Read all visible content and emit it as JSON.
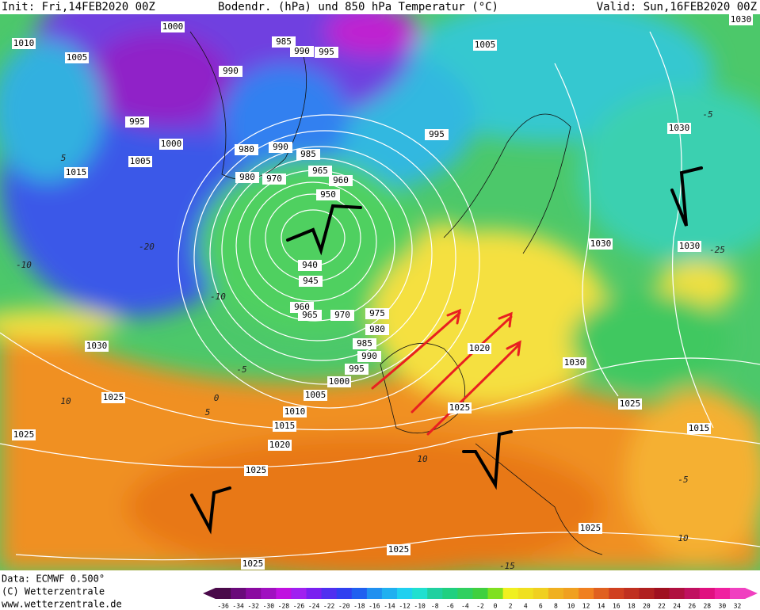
{
  "header": {
    "init": "Init: Fri,14FEB2020 00Z",
    "title": "Bodendr. (hPa)  und 850 hPa Temperatur (°C)",
    "valid": "Valid: Sun,16FEB2020 00Z"
  },
  "footer": {
    "data": "Data: ECMWF  0.500°",
    "copyright": "(C) Wetterzentrale",
    "url": "www.wetterzentrale.de"
  },
  "isobar_labels": [
    "1000",
    "1010",
    "1005",
    "985",
    "990",
    "995",
    "990",
    "995",
    "1000",
    "1005",
    "980",
    "990",
    "985",
    "965",
    "980",
    "970",
    "960",
    "950",
    "940",
    "945",
    "960",
    "965",
    "970",
    "975",
    "980",
    "985",
    "990",
    "995",
    "1000",
    "1005",
    "1010",
    "1015",
    "1020",
    "1025",
    "1030",
    "1025",
    "1025",
    "1015",
    "1005",
    "1030",
    "1030",
    "995",
    "1030",
    "1030",
    "1020",
    "1030",
    "1025",
    "1025",
    "1015",
    "1025",
    "1025",
    "1025"
  ],
  "temperature_labels": [
    "-10",
    "-5",
    "0",
    "5",
    "10",
    "10",
    "-25",
    "-5",
    "10",
    "-15",
    "-10",
    "-20",
    "5",
    "-5"
  ],
  "colorbar": {
    "ticks": [
      -36,
      -34,
      -32,
      -30,
      -28,
      -26,
      -24,
      -22,
      -20,
      -18,
      -16,
      -14,
      -12,
      -10,
      -8,
      -6,
      -4,
      -2,
      0,
      2,
      4,
      6,
      8,
      10,
      12,
      14,
      16,
      18,
      20,
      22,
      24,
      26,
      28,
      30,
      32
    ],
    "colors": [
      "#4a0a4a",
      "#6a0a7a",
      "#8a0aa0",
      "#a010c0",
      "#c010e0",
      "#a020f0",
      "#7a20f0",
      "#5030f0",
      "#3040f0",
      "#2060f0",
      "#2090f0",
      "#20b0f0",
      "#20d0f0",
      "#20e0d0",
      "#20d0a0",
      "#20d080",
      "#30d060",
      "#40d040",
      "#80e020",
      "#f0f020",
      "#f0e020",
      "#f0d020",
      "#f0b020",
      "#f0a020",
      "#f08020",
      "#e06020",
      "#d04020",
      "#c03020",
      "#b02020",
      "#a01020",
      "#b01040",
      "#c01060",
      "#e01080",
      "#f020a0",
      "#f040c0"
    ]
  }
}
